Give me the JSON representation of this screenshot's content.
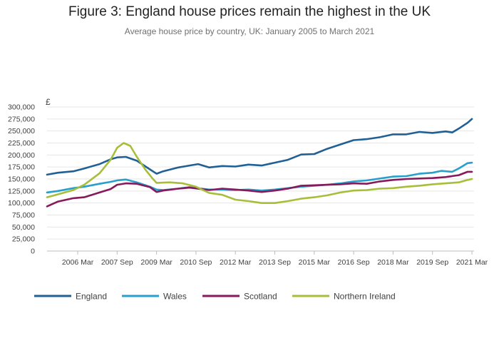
{
  "chart_data": {
    "type": "line",
    "title": "Figure 3: England house prices remain the highest in the UK",
    "subtitle": "Average house price by country, UK: January 2005 to March 2021",
    "y_unit": "£",
    "x_range": [
      "Jan 2005",
      "Mar 2021"
    ],
    "ylim": [
      0,
      300000
    ],
    "y_ticks": [
      0,
      25000,
      50000,
      75000,
      100000,
      125000,
      150000,
      175000,
      200000,
      225000,
      250000,
      275000,
      300000
    ],
    "y_tick_labels": [
      "0",
      "25,000",
      "50,000",
      "75,000",
      "100,000",
      "125,000",
      "150,000",
      "175,000",
      "200,000",
      "225,000",
      "250,000",
      "275,000",
      "300,000"
    ],
    "x_ticks": [
      {
        "label": "2006 Mar",
        "year": 2006,
        "month": 3
      },
      {
        "label": "2007 Sep",
        "year": 2007,
        "month": 9
      },
      {
        "label": "2009 Mar",
        "year": 2009,
        "month": 3
      },
      {
        "label": "2010 Sep",
        "year": 2010,
        "month": 9
      },
      {
        "label": "2012 Mar",
        "year": 2012,
        "month": 3
      },
      {
        "label": "2013 Sep",
        "year": 2013,
        "month": 9
      },
      {
        "label": "2015 Mar",
        "year": 2015,
        "month": 3
      },
      {
        "label": "2016 Sep",
        "year": 2016,
        "month": 9
      },
      {
        "label": "2018 Mar",
        "year": 2018,
        "month": 3
      },
      {
        "label": "2019 Sep",
        "year": 2019,
        "month": 9
      },
      {
        "label": "2021 Mar",
        "year": 2021,
        "month": 3
      }
    ],
    "grid": "horizontal",
    "legend_position": "bottom",
    "series": [
      {
        "name": "England",
        "color": "#206095",
        "points": [
          [
            "2005-01",
            159000
          ],
          [
            "2005-06",
            163000
          ],
          [
            "2006-01",
            166000
          ],
          [
            "2006-06",
            172000
          ],
          [
            "2007-01",
            181000
          ],
          [
            "2007-06",
            191000
          ],
          [
            "2007-09",
            195000
          ],
          [
            "2008-01",
            196000
          ],
          [
            "2008-06",
            188000
          ],
          [
            "2008-10",
            176000
          ],
          [
            "2009-03",
            161000
          ],
          [
            "2009-06",
            166000
          ],
          [
            "2010-01",
            174000
          ],
          [
            "2010-06",
            178000
          ],
          [
            "2010-10",
            181000
          ],
          [
            "2011-03",
            174000
          ],
          [
            "2011-09",
            177000
          ],
          [
            "2012-03",
            176000
          ],
          [
            "2012-09",
            180000
          ],
          [
            "2013-03",
            178000
          ],
          [
            "2013-09",
            184000
          ],
          [
            "2014-03",
            190000
          ],
          [
            "2014-09",
            201000
          ],
          [
            "2015-03",
            202000
          ],
          [
            "2015-09",
            213000
          ],
          [
            "2016-03",
            222000
          ],
          [
            "2016-09",
            231000
          ],
          [
            "2017-03",
            233000
          ],
          [
            "2017-09",
            237000
          ],
          [
            "2018-03",
            243000
          ],
          [
            "2018-09",
            243000
          ],
          [
            "2019-03",
            248000
          ],
          [
            "2019-09",
            246000
          ],
          [
            "2020-03",
            249000
          ],
          [
            "2020-06",
            247000
          ],
          [
            "2020-09",
            255000
          ],
          [
            "2021-01",
            267000
          ],
          [
            "2021-03",
            275000
          ]
        ]
      },
      {
        "name": "Wales",
        "color": "#27a0cc",
        "points": [
          [
            "2005-01",
            122000
          ],
          [
            "2005-06",
            125000
          ],
          [
            "2006-01",
            131000
          ],
          [
            "2006-06",
            134000
          ],
          [
            "2007-01",
            140000
          ],
          [
            "2007-06",
            144000
          ],
          [
            "2007-09",
            147000
          ],
          [
            "2008-01",
            149000
          ],
          [
            "2008-06",
            143000
          ],
          [
            "2008-12",
            134000
          ],
          [
            "2009-03",
            128000
          ],
          [
            "2009-06",
            127000
          ],
          [
            "2010-01",
            130000
          ],
          [
            "2010-06",
            133000
          ],
          [
            "2011-03",
            128000
          ],
          [
            "2011-09",
            128000
          ],
          [
            "2012-03",
            127000
          ],
          [
            "2012-09",
            128000
          ],
          [
            "2013-03",
            126000
          ],
          [
            "2013-09",
            128000
          ],
          [
            "2014-03",
            131000
          ],
          [
            "2014-09",
            134000
          ],
          [
            "2015-03",
            136000
          ],
          [
            "2015-09",
            138000
          ],
          [
            "2016-03",
            141000
          ],
          [
            "2016-09",
            145000
          ],
          [
            "2017-03",
            147000
          ],
          [
            "2017-09",
            151000
          ],
          [
            "2018-03",
            155000
          ],
          [
            "2018-09",
            156000
          ],
          [
            "2019-03",
            161000
          ],
          [
            "2019-09",
            163000
          ],
          [
            "2020-01",
            167000
          ],
          [
            "2020-06",
            165000
          ],
          [
            "2020-09",
            172000
          ],
          [
            "2021-01",
            183000
          ],
          [
            "2021-03",
            184000
          ]
        ]
      },
      {
        "name": "Scotland",
        "color": "#871a5b",
        "points": [
          [
            "2005-01",
            93000
          ],
          [
            "2005-06",
            103000
          ],
          [
            "2006-01",
            110000
          ],
          [
            "2006-06",
            112000
          ],
          [
            "2007-01",
            122000
          ],
          [
            "2007-06",
            129000
          ],
          [
            "2007-09",
            138000
          ],
          [
            "2008-01",
            141000
          ],
          [
            "2008-06",
            140000
          ],
          [
            "2008-12",
            133000
          ],
          [
            "2009-03",
            123000
          ],
          [
            "2009-06",
            126000
          ],
          [
            "2010-01",
            130000
          ],
          [
            "2010-06",
            132000
          ],
          [
            "2011-03",
            127000
          ],
          [
            "2011-09",
            130000
          ],
          [
            "2012-03",
            128000
          ],
          [
            "2012-09",
            126000
          ],
          [
            "2013-03",
            123000
          ],
          [
            "2013-09",
            126000
          ],
          [
            "2014-03",
            130000
          ],
          [
            "2014-09",
            136000
          ],
          [
            "2015-03",
            137000
          ],
          [
            "2015-09",
            138000
          ],
          [
            "2016-03",
            139000
          ],
          [
            "2016-09",
            141000
          ],
          [
            "2017-03",
            140000
          ],
          [
            "2017-09",
            145000
          ],
          [
            "2018-03",
            148000
          ],
          [
            "2018-09",
            150000
          ],
          [
            "2019-03",
            151000
          ],
          [
            "2019-09",
            152000
          ],
          [
            "2020-03",
            154000
          ],
          [
            "2020-09",
            158000
          ],
          [
            "2021-01",
            165000
          ],
          [
            "2021-03",
            165000
          ]
        ]
      },
      {
        "name": "Northern Ireland",
        "color": "#a8bd3a",
        "points": [
          [
            "2005-01",
            112000
          ],
          [
            "2005-06",
            118000
          ],
          [
            "2006-01",
            127000
          ],
          [
            "2006-06",
            138000
          ],
          [
            "2007-01",
            162000
          ],
          [
            "2007-06",
            190000
          ],
          [
            "2007-09",
            215000
          ],
          [
            "2007-12",
            225000
          ],
          [
            "2008-03",
            219000
          ],
          [
            "2008-06",
            196000
          ],
          [
            "2008-10",
            169000
          ],
          [
            "2009-01",
            152000
          ],
          [
            "2009-03",
            142000
          ],
          [
            "2009-09",
            143000
          ],
          [
            "2010-03",
            141000
          ],
          [
            "2010-09",
            134000
          ],
          [
            "2011-03",
            121000
          ],
          [
            "2011-09",
            117000
          ],
          [
            "2012-03",
            107000
          ],
          [
            "2012-09",
            104000
          ],
          [
            "2013-03",
            100000
          ],
          [
            "2013-09",
            100000
          ],
          [
            "2014-03",
            104000
          ],
          [
            "2014-09",
            109000
          ],
          [
            "2015-03",
            112000
          ],
          [
            "2015-09",
            116000
          ],
          [
            "2016-03",
            122000
          ],
          [
            "2016-09",
            126000
          ],
          [
            "2017-03",
            127000
          ],
          [
            "2017-09",
            130000
          ],
          [
            "2018-03",
            131000
          ],
          [
            "2018-09",
            134000
          ],
          [
            "2019-03",
            136000
          ],
          [
            "2019-09",
            139000
          ],
          [
            "2020-03",
            141000
          ],
          [
            "2020-09",
            143000
          ],
          [
            "2021-01",
            148000
          ],
          [
            "2021-03",
            150000
          ]
        ]
      }
    ]
  }
}
